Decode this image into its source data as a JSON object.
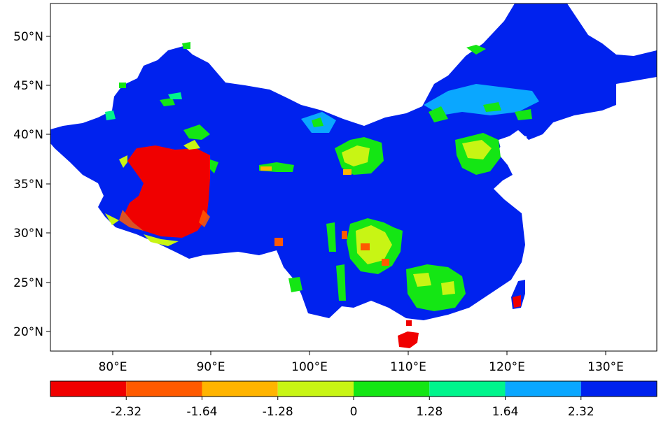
{
  "map": {
    "lat_ticks": [
      "50°N",
      "45°N",
      "40°N",
      "35°N",
      "30°N",
      "25°N",
      "20°N"
    ],
    "lon_ticks": [
      "80°E",
      "90°E",
      "100°E",
      "110°E",
      "120°E",
      "130°E"
    ],
    "colors": {
      "very_high": "#0022ee",
      "high": "#0aa7ff",
      "mid_high": "#00f58c",
      "mid": "#14e614",
      "mid_low": "#c8f514",
      "low": "#ffb400",
      "very_low": "#ff5a00",
      "lowest": "#f00000"
    }
  },
  "colorbar": {
    "colors": [
      "#f00000",
      "#ff5a00",
      "#ffb400",
      "#c8f514",
      "#14e614",
      "#00f58c",
      "#0aa7ff",
      "#0022ee"
    ],
    "labels": [
      "-2.32",
      "-1.64",
      "-1.28",
      "0",
      "1.28",
      "1.64",
      "2.32"
    ]
  }
}
